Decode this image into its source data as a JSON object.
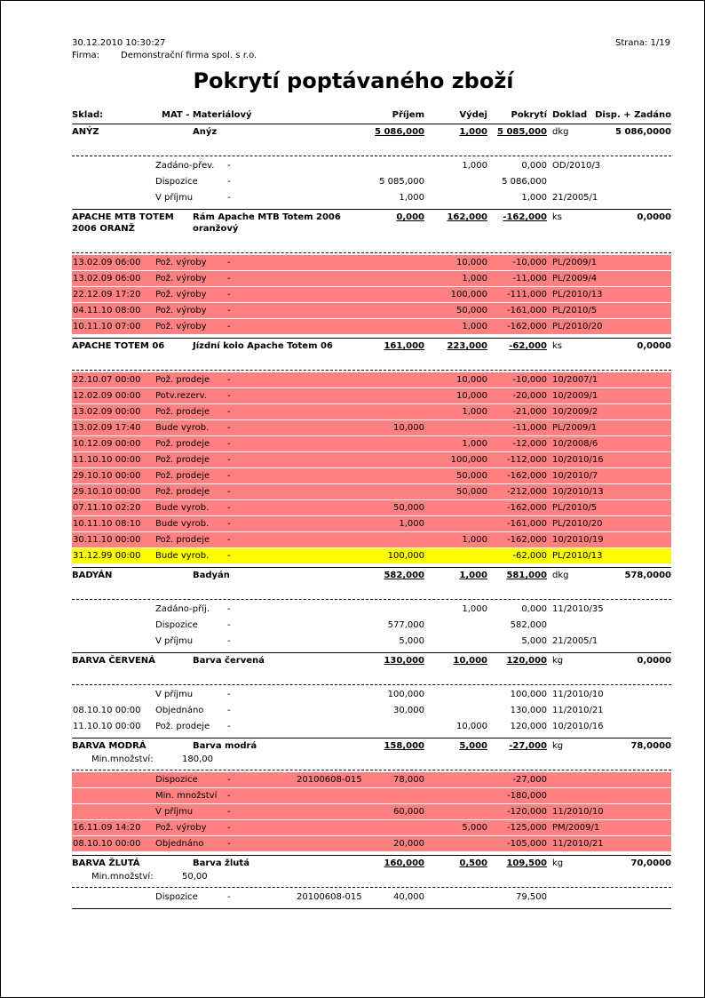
{
  "header": {
    "datetime": "30.12.2010  10:30:27",
    "firma_label": "Firma:",
    "firma": "Demonstrační firma spol. s r.o.",
    "page": "Strana: 1/19",
    "title": "Pokrytí poptávaného zboží"
  },
  "columns": {
    "sklad_label": "Sklad:",
    "sklad": "MAT - Materiálový",
    "prijem": "Příjem",
    "vydej": "Výdej",
    "pokryti": "Pokrytí",
    "doklad": "Doklad",
    "disp": "Disp. + Zadáno"
  },
  "colors": {
    "red": "#ff8080",
    "yellow": "#ffff00"
  },
  "min_label": "Min.množství:",
  "sections": [
    {
      "code": "ANÝZ",
      "name": "Anýz",
      "prijem": "5 086,000",
      "vydej": "1,000",
      "pokryti": "5 085,000",
      "unit": "dkg",
      "disp": "5 086,0000",
      "min": null,
      "rows": [
        {
          "date": "",
          "type": "Zadáno-přev.",
          "dash": "-",
          "ref": "",
          "prijem": "",
          "vydej": "1,000",
          "pokryti": "0,000",
          "doklad": "OD/2010/3",
          "color": ""
        },
        {
          "date": "",
          "type": "Dispozice",
          "dash": "-",
          "ref": "",
          "prijem": "5 085,000",
          "vydej": "",
          "pokryti": "5 086,000",
          "doklad": "",
          "color": ""
        },
        {
          "date": "",
          "type": "V příjmu",
          "dash": "-",
          "ref": "",
          "prijem": "1,000",
          "vydej": "",
          "pokryti": "1,000",
          "doklad": "21/2005/1",
          "color": ""
        }
      ]
    },
    {
      "code": "APACHE MTB TOTEM 2006 ORANŽ",
      "name": "Rám Apache MTB Totem 2006 oranžový",
      "prijem": "0,000",
      "vydej": "162,000",
      "pokryti": "-162,000",
      "unit": "ks",
      "disp": "0,0000",
      "min": null,
      "rows": [
        {
          "date": "13.02.09 06:00",
          "type": "Pož. výroby",
          "dash": "-",
          "ref": "",
          "prijem": "",
          "vydej": "10,000",
          "pokryti": "-10,000",
          "doklad": "PL/2009/1",
          "color": "red"
        },
        {
          "date": "13.02.09 06:00",
          "type": "Pož. výroby",
          "dash": "-",
          "ref": "",
          "prijem": "",
          "vydej": "1,000",
          "pokryti": "-11,000",
          "doklad": "PL/2009/4",
          "color": "red"
        },
        {
          "date": "22.12.09 17:20",
          "type": "Pož. výroby",
          "dash": "-",
          "ref": "",
          "prijem": "",
          "vydej": "100,000",
          "pokryti": "-111,000",
          "doklad": "PL/2010/13",
          "color": "red"
        },
        {
          "date": "04.11.10 08:00",
          "type": "Pož. výroby",
          "dash": "-",
          "ref": "",
          "prijem": "",
          "vydej": "50,000",
          "pokryti": "-161,000",
          "doklad": "PL/2010/5",
          "color": "red"
        },
        {
          "date": "10.11.10 07:00",
          "type": "Pož. výroby",
          "dash": "-",
          "ref": "",
          "prijem": "",
          "vydej": "1,000",
          "pokryti": "-162,000",
          "doklad": "PL/2010/20",
          "color": "red"
        }
      ]
    },
    {
      "code": "APACHE TOTEM 06",
      "name": "Jízdní kolo Apache Totem 06",
      "prijem": "161,000",
      "vydej": "223,000",
      "pokryti": "-62,000",
      "unit": "ks",
      "disp": "0,0000",
      "min": null,
      "rows": [
        {
          "date": "22.10.07 00:00",
          "type": "Pož. prodeje",
          "dash": "-",
          "ref": "",
          "prijem": "",
          "vydej": "10,000",
          "pokryti": "-10,000",
          "doklad": "10/2007/1",
          "color": "red"
        },
        {
          "date": "12.02.09 00:00",
          "type": "Potv.rezerv.",
          "dash": "-",
          "ref": "",
          "prijem": "",
          "vydej": "10,000",
          "pokryti": "-20,000",
          "doklad": "10/2009/1",
          "color": "red"
        },
        {
          "date": "13.02.09 00:00",
          "type": "Pož. prodeje",
          "dash": "-",
          "ref": "",
          "prijem": "",
          "vydej": "1,000",
          "pokryti": "-21,000",
          "doklad": "10/2009/2",
          "color": "red"
        },
        {
          "date": "13.02.09 17:40",
          "type": "Bude vyrob.",
          "dash": "-",
          "ref": "",
          "prijem": "10,000",
          "vydej": "",
          "pokryti": "-11,000",
          "doklad": "PL/2009/1",
          "color": "red"
        },
        {
          "date": "10.12.09 00:00",
          "type": "Pož. prodeje",
          "dash": "-",
          "ref": "",
          "prijem": "",
          "vydej": "1,000",
          "pokryti": "-12,000",
          "doklad": "10/2008/6",
          "color": "red"
        },
        {
          "date": "11.10.10 00:00",
          "type": "Pož. prodeje",
          "dash": "-",
          "ref": "",
          "prijem": "",
          "vydej": "100,000",
          "pokryti": "-112,000",
          "doklad": "10/2010/16",
          "color": "red"
        },
        {
          "date": "29.10.10 00:00",
          "type": "Pož. prodeje",
          "dash": "-",
          "ref": "",
          "prijem": "",
          "vydej": "50,000",
          "pokryti": "-162,000",
          "doklad": "10/2010/7",
          "color": "red"
        },
        {
          "date": "29.10.10 00:00",
          "type": "Pož. prodeje",
          "dash": "-",
          "ref": "",
          "prijem": "",
          "vydej": "50,000",
          "pokryti": "-212,000",
          "doklad": "10/2010/13",
          "color": "red"
        },
        {
          "date": "07.11.10 02:20",
          "type": "Bude vyrob.",
          "dash": "-",
          "ref": "",
          "prijem": "50,000",
          "vydej": "",
          "pokryti": "-162,000",
          "doklad": "PL/2010/5",
          "color": "red"
        },
        {
          "date": "10.11.10 08:10",
          "type": "Bude vyrob.",
          "dash": "-",
          "ref": "",
          "prijem": "1,000",
          "vydej": "",
          "pokryti": "-161,000",
          "doklad": "PL/2010/20",
          "color": "red"
        },
        {
          "date": "30.11.10 00:00",
          "type": "Pož. prodeje",
          "dash": "-",
          "ref": "",
          "prijem": "",
          "vydej": "1,000",
          "pokryti": "-162,000",
          "doklad": "10/2010/19",
          "color": "red"
        },
        {
          "date": "31.12.99 00:00",
          "type": "Bude vyrob.",
          "dash": "-",
          "ref": "",
          "prijem": "100,000",
          "vydej": "",
          "pokryti": "-62,000",
          "doklad": "PL/2010/13",
          "color": "yellow"
        }
      ]
    },
    {
      "code": "BADYÁN",
      "name": "Badyán",
      "prijem": "582,000",
      "vydej": "1,000",
      "pokryti": "581,000",
      "unit": "dkg",
      "disp": "578,0000",
      "min": null,
      "rows": [
        {
          "date": "",
          "type": "Zadáno-příj.",
          "dash": "-",
          "ref": "",
          "prijem": "",
          "vydej": "1,000",
          "pokryti": "0,000",
          "doklad": "11/2010/35",
          "color": ""
        },
        {
          "date": "",
          "type": "Dispozice",
          "dash": "-",
          "ref": "",
          "prijem": "577,000",
          "vydej": "",
          "pokryti": "582,000",
          "doklad": "",
          "color": ""
        },
        {
          "date": "",
          "type": "V příjmu",
          "dash": "-",
          "ref": "",
          "prijem": "5,000",
          "vydej": "",
          "pokryti": "5,000",
          "doklad": "21/2005/1",
          "color": ""
        }
      ]
    },
    {
      "code": "BARVA ČERVENÁ",
      "name": "Barva červená",
      "prijem": "130,000",
      "vydej": "10,000",
      "pokryti": "120,000",
      "unit": "kg",
      "disp": "0,0000",
      "min": null,
      "rows": [
        {
          "date": "",
          "type": "V příjmu",
          "dash": "-",
          "ref": "",
          "prijem": "100,000",
          "vydej": "",
          "pokryti": "100,000",
          "doklad": "11/2010/10",
          "color": ""
        },
        {
          "date": "08.10.10 00:00",
          "type": "Objednáno",
          "dash": "-",
          "ref": "",
          "prijem": "30,000",
          "vydej": "",
          "pokryti": "130,000",
          "doklad": "11/2010/21",
          "color": ""
        },
        {
          "date": "11.10.10 00:00",
          "type": "Pož. prodeje",
          "dash": "-",
          "ref": "",
          "prijem": "",
          "vydej": "10,000",
          "pokryti": "120,000",
          "doklad": "10/2010/16",
          "color": ""
        }
      ]
    },
    {
      "code": "BARVA MODRÁ",
      "name": "Barva modrá",
      "prijem": "158,000",
      "vydej": "5,000",
      "pokryti": "-27,000",
      "unit": "kg",
      "disp": "78,0000",
      "min": "180,00",
      "rows": [
        {
          "date": "",
          "type": "Dispozice",
          "dash": "-",
          "ref": "20100608-015",
          "prijem": "78,000",
          "vydej": "",
          "pokryti": "-27,000",
          "doklad": "",
          "color": "red"
        },
        {
          "date": "",
          "type": "Min. množství",
          "dash": "-",
          "ref": "",
          "prijem": "",
          "vydej": "",
          "pokryti": "-180,000",
          "doklad": "",
          "color": "red"
        },
        {
          "date": "",
          "type": "V příjmu",
          "dash": "-",
          "ref": "",
          "prijem": "60,000",
          "vydej": "",
          "pokryti": "-120,000",
          "doklad": "11/2010/10",
          "color": "red"
        },
        {
          "date": "16.11.09 14:20",
          "type": "Pož. výroby",
          "dash": "-",
          "ref": "",
          "prijem": "",
          "vydej": "5,000",
          "pokryti": "-125,000",
          "doklad": "PM/2009/1",
          "color": "red"
        },
        {
          "date": "08.10.10 00:00",
          "type": "Objednáno",
          "dash": "-",
          "ref": "",
          "prijem": "20,000",
          "vydej": "",
          "pokryti": "-105,000",
          "doklad": "11/2010/21",
          "color": "red"
        }
      ]
    },
    {
      "code": "BARVA ŽLUTÁ",
      "name": "Barva žlutá",
      "prijem": "160,000",
      "vydej": "0,500",
      "pokryti": "109,500",
      "unit": "kg",
      "disp": "70,0000",
      "min": "50,00",
      "rows": [
        {
          "date": "",
          "type": "Dispozice",
          "dash": "-",
          "ref": "20100608-015",
          "prijem": "40,000",
          "vydej": "",
          "pokryti": "79,500",
          "doklad": "",
          "color": ""
        }
      ]
    }
  ]
}
